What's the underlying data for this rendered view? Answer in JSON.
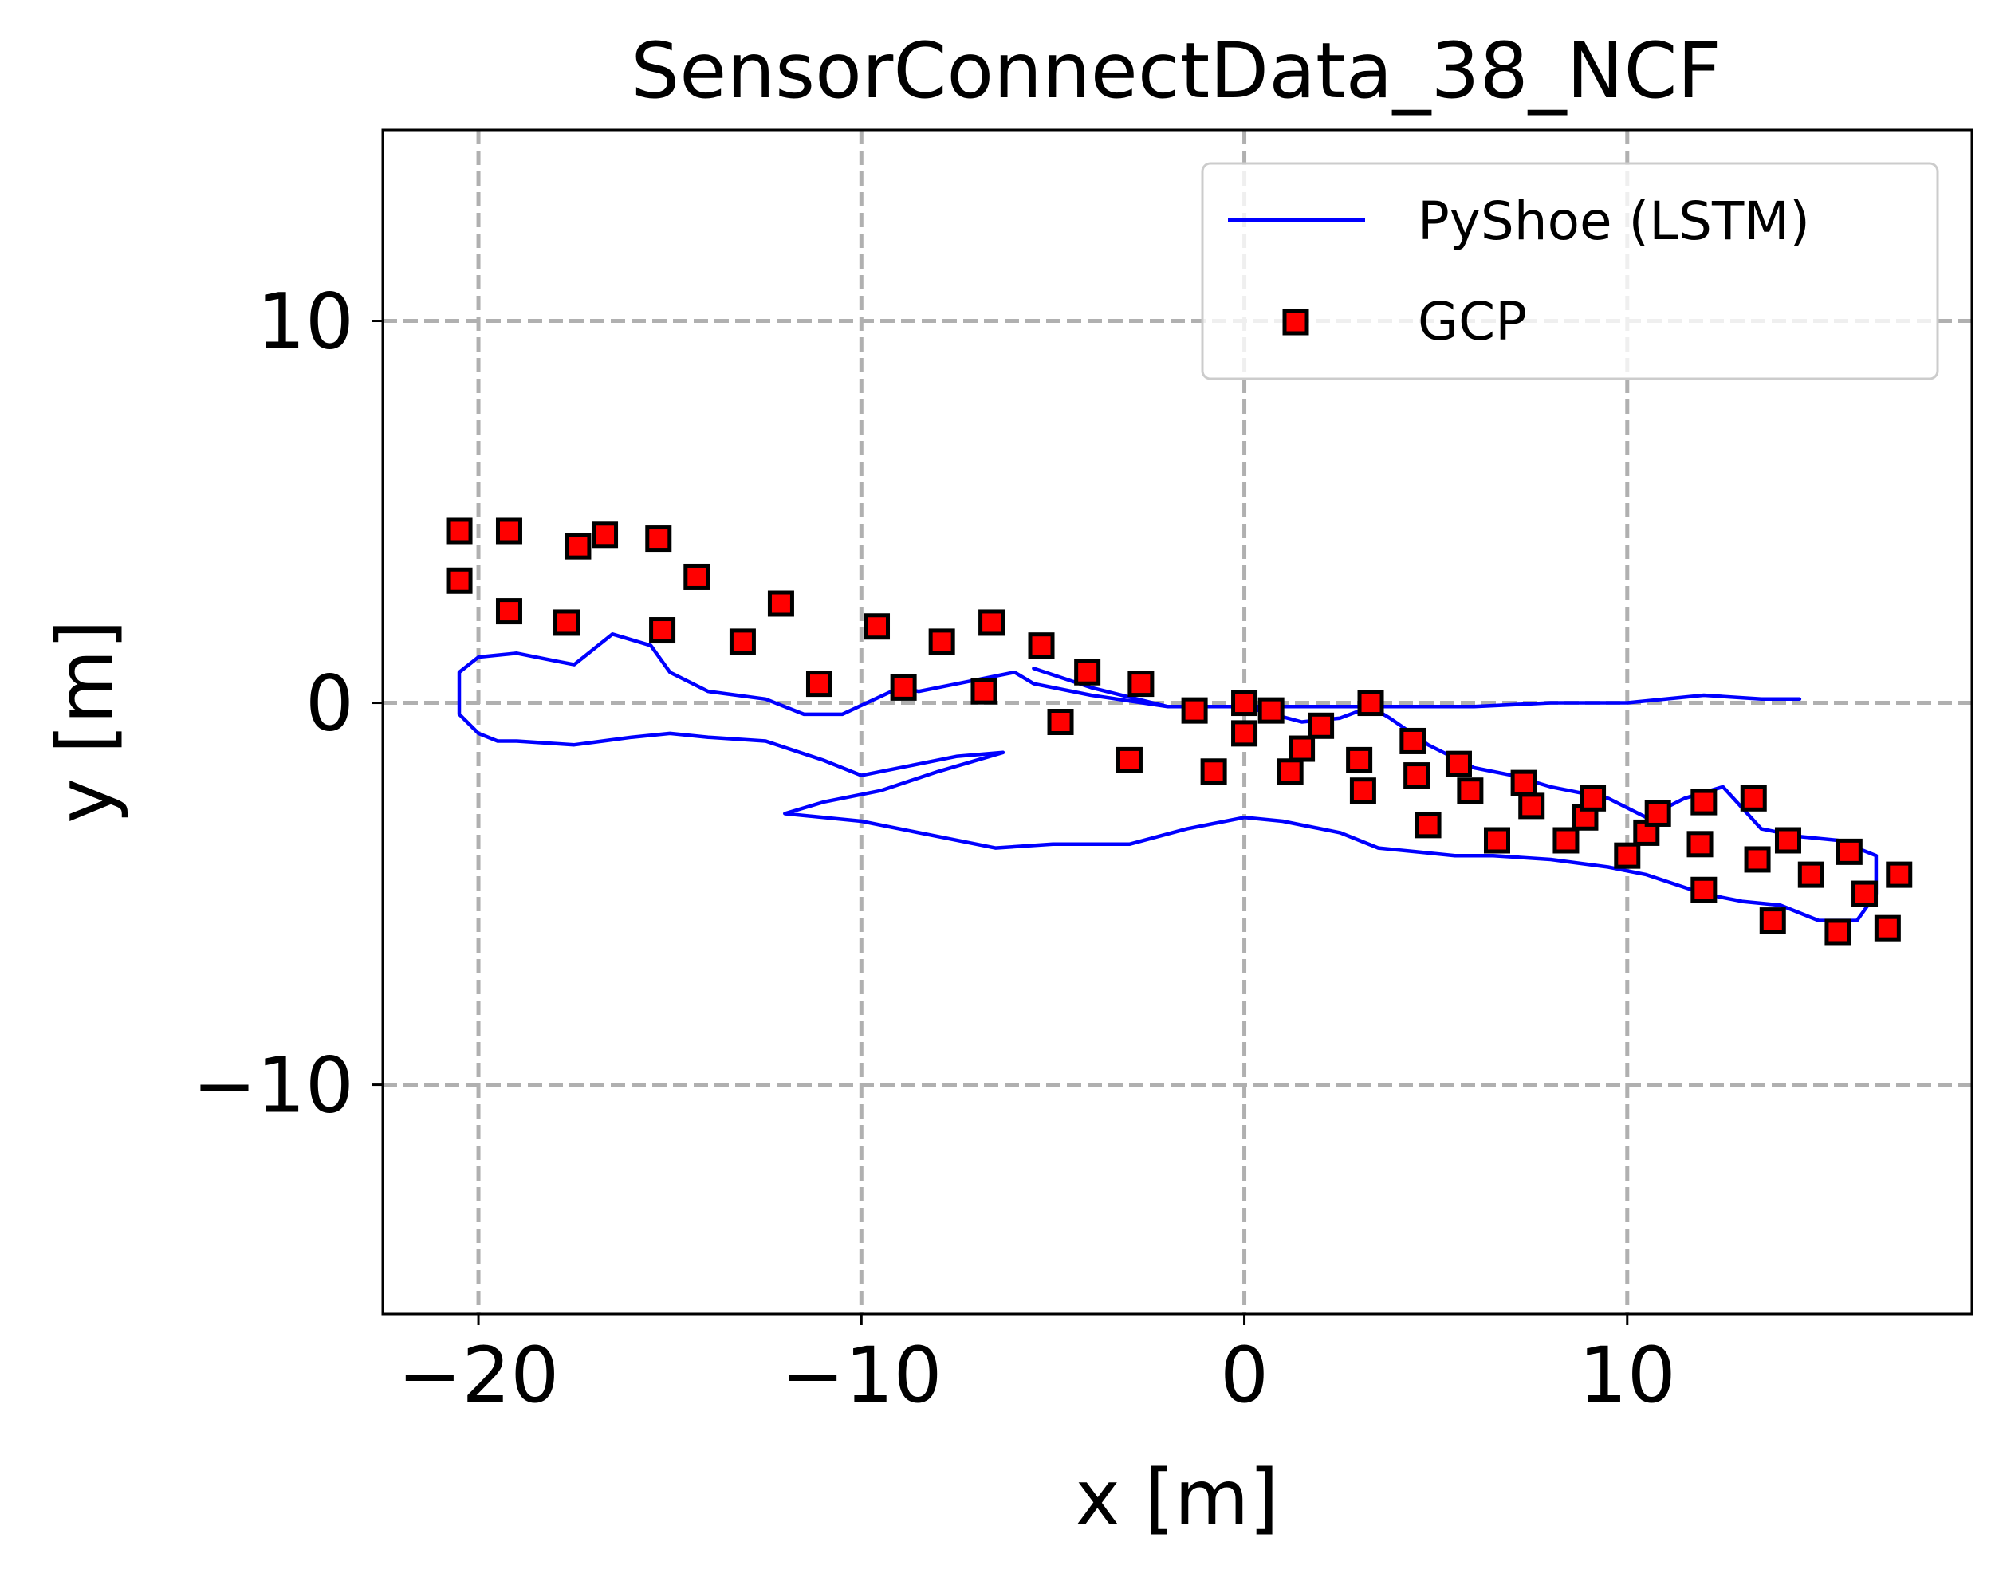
{
  "chart_data": {
    "type": "line",
    "title": "SensorConnectData_38_NCF",
    "xlabel": "x [m]",
    "ylabel": "y [m]",
    "xlim": [
      -22.5,
      19
    ],
    "ylim": [
      -16,
      15
    ],
    "xticks": [
      -20,
      -10,
      0,
      10
    ],
    "xtick_labels": [
      "−20",
      "−10",
      "0",
      "10"
    ],
    "yticks": [
      -10,
      0,
      10
    ],
    "ytick_labels": [
      "−10",
      "0",
      "10"
    ],
    "grid": true,
    "legend": "top-right",
    "series": [
      {
        "name": "PyShoe (LSTM)",
        "type": "line",
        "color": "#0000ff",
        "x": [
          14.5,
          13.5,
          12.0,
          10.0,
          8.0,
          6.0,
          4.0,
          3.3,
          2.0,
          0.0,
          -2.0,
          -4.0,
          -5.5,
          -6.0,
          -7.0,
          -8.5,
          -9.0,
          -10.5,
          -11.5,
          -12.5,
          -14.0,
          -15.0,
          -15.5,
          -16.5,
          -17.5,
          -18.0,
          -19.0,
          -20.0,
          -20.5,
          -20.5,
          -20.0,
          -19.5,
          -19.0,
          -17.5,
          -16.0,
          -15.0,
          -14.0,
          -12.5,
          -11.0,
          -10.0,
          -8.5,
          -7.5,
          -6.3,
          -8.0,
          -9.5,
          -11.0,
          -12.0,
          -10.0,
          -8.0,
          -6.5,
          -5.0,
          -3.0,
          -1.5,
          0.0,
          1.0,
          2.5,
          3.5,
          4.5,
          5.5,
          6.5,
          8.0,
          9.5,
          10.5,
          12.0,
          13.0,
          14.0,
          15.0,
          16.0,
          16.5,
          16.5,
          15.5,
          14.5,
          13.5,
          12.5,
          11.5,
          10.5,
          9.5,
          8.0,
          7.0,
          6.0,
          4.8,
          3.8,
          3.3,
          2.5,
          1.5,
          0.0,
          -2.0,
          -4.0,
          -5.5
        ],
        "y": [
          0.1,
          0.1,
          0.2,
          0.0,
          0.0,
          -0.1,
          -0.1,
          -0.1,
          -0.1,
          -0.1,
          -0.1,
          0.2,
          0.5,
          0.8,
          0.6,
          0.3,
          0.4,
          -0.3,
          -0.3,
          0.1,
          0.3,
          0.8,
          1.5,
          1.8,
          1.0,
          1.1,
          1.3,
          1.2,
          0.8,
          -0.3,
          -0.8,
          -1.0,
          -1.0,
          -1.1,
          -0.9,
          -0.8,
          -0.9,
          -1.0,
          -1.5,
          -1.9,
          -1.6,
          -1.4,
          -1.3,
          -1.8,
          -2.3,
          -2.6,
          -2.9,
          -3.1,
          -3.5,
          -3.8,
          -3.7,
          -3.7,
          -3.3,
          -3.0,
          -3.1,
          -3.4,
          -3.8,
          -3.9,
          -4.0,
          -4.0,
          -4.1,
          -4.3,
          -4.5,
          -5.0,
          -5.2,
          -5.3,
          -5.7,
          -5.7,
          -5.0,
          -4.0,
          -3.6,
          -3.5,
          -3.3,
          -2.2,
          -2.5,
          -3.0,
          -2.5,
          -2.2,
          -1.9,
          -1.7,
          -1.1,
          -0.4,
          -0.1,
          -0.4,
          -0.5,
          -0.1,
          -0.1,
          0.4,
          0.9
        ]
      },
      {
        "name": "GCP",
        "type": "scatter",
        "marker": "square",
        "color": "#ff0000",
        "x": [
          -20.5,
          -20.5,
          -19.2,
          -19.2,
          -17.7,
          -17.4,
          -16.7,
          -15.3,
          -15.2,
          -14.3,
          -13.1,
          -12.1,
          -11.1,
          -9.6,
          -8.9,
          -7.9,
          -6.8,
          -6.6,
          -5.3,
          -4.8,
          -4.1,
          -3.0,
          -2.7,
          -1.3,
          -0.8,
          0.0,
          0.0,
          0.7,
          1.2,
          1.5,
          2.0,
          3.0,
          3.1,
          3.3,
          4.4,
          4.5,
          4.8,
          5.6,
          5.9,
          6.6,
          7.3,
          7.5,
          8.4,
          8.9,
          9.1,
          10.0,
          10.5,
          10.8,
          11.9,
          12.0,
          12.0,
          13.3,
          13.4,
          13.8,
          14.2,
          14.8,
          15.5,
          15.8,
          16.2,
          16.8,
          17.1
        ],
        "y": [
          4.5,
          3.2,
          4.5,
          2.4,
          2.1,
          4.1,
          4.4,
          4.3,
          1.9,
          3.3,
          1.6,
          2.6,
          0.5,
          2.0,
          0.4,
          1.6,
          0.3,
          2.1,
          1.5,
          -0.5,
          0.8,
          -1.5,
          0.5,
          -0.2,
          -1.8,
          0.0,
          -0.8,
          -0.2,
          -1.8,
          -1.2,
          -0.6,
          -1.5,
          -2.3,
          0.0,
          -1.0,
          -1.9,
          -3.2,
          -1.6,
          -2.3,
          -3.6,
          -2.1,
          -2.7,
          -3.6,
          -3.0,
          -2.5,
          -4.0,
          -3.4,
          -2.9,
          -3.7,
          -2.6,
          -4.9,
          -2.5,
          -4.1,
          -5.7,
          -3.6,
          -4.5,
          -6.0,
          -3.9,
          -5.0,
          -5.9,
          -4.5
        ]
      }
    ]
  }
}
